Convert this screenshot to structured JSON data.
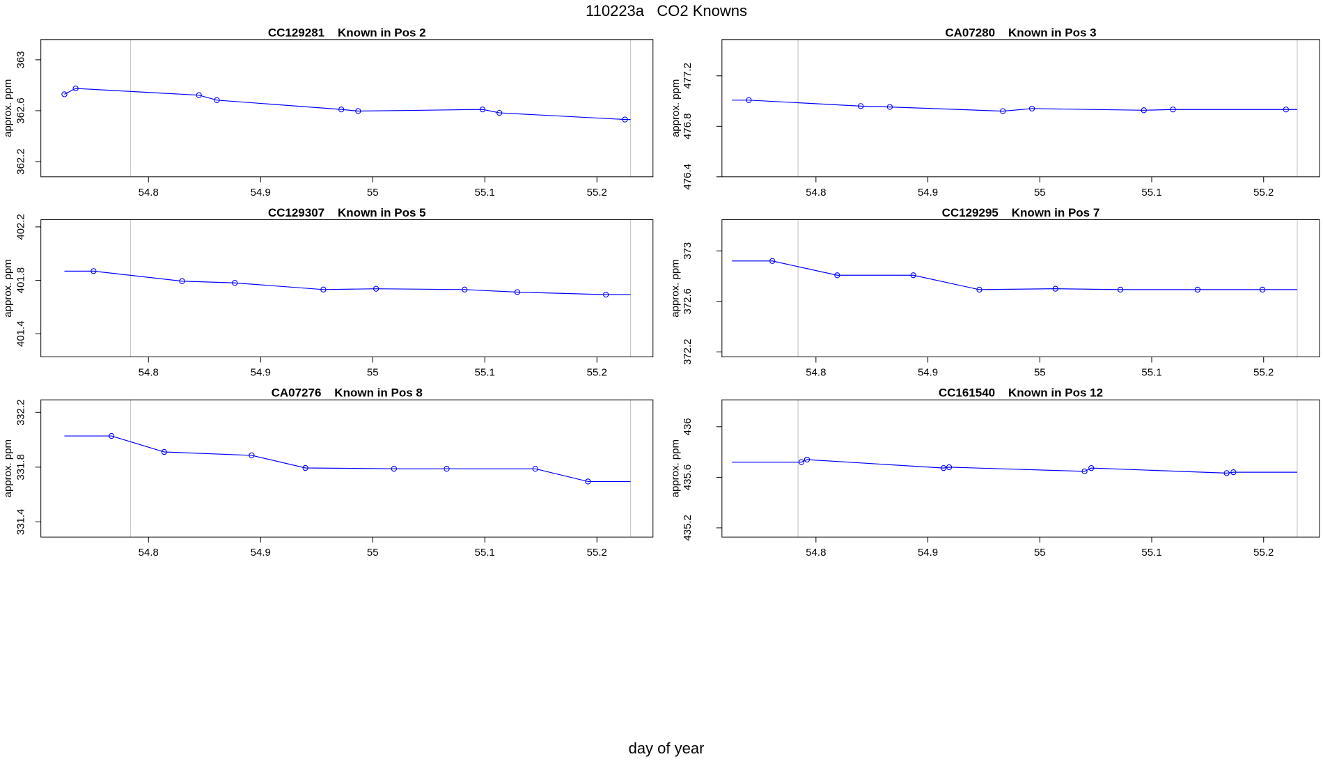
{
  "title": "110223a   CO2 Knowns",
  "xlabel": "day of year",
  "chart_data": [
    {
      "type": "line",
      "title": "CC129281    Known in Pos 2",
      "ylabel": "approx. ppm",
      "color": "#0000ff",
      "x": [
        54.725,
        54.735,
        54.845,
        54.861,
        54.972,
        54.987,
        55.098,
        55.113,
        55.225,
        55.23
      ],
      "values": [
        362.729,
        362.775,
        362.722,
        362.683,
        362.61,
        362.597,
        362.61,
        362.583,
        362.531,
        362.531
      ],
      "marker_shown": [
        true,
        true,
        true,
        true,
        true,
        true,
        true,
        true,
        true,
        false
      ],
      "xlim": [
        54.704,
        55.25
      ],
      "ylim": [
        362.081,
        363.159
      ],
      "xticks": [
        54.8,
        54.9,
        55.0,
        55.1,
        55.2
      ],
      "yticks": [
        362.2,
        362.6,
        363.0
      ],
      "vlines": [
        54.784,
        55.23
      ]
    },
    {
      "type": "line",
      "title": "CA07280    Known in Pos 3",
      "ylabel": "approx. ppm",
      "color": "#0000ff",
      "x": [
        54.725,
        54.74,
        54.84,
        54.866,
        54.967,
        54.993,
        55.093,
        55.119,
        55.22,
        55.23
      ],
      "values": [
        477.007,
        477.007,
        476.96,
        476.953,
        476.92,
        476.94,
        476.927,
        476.933,
        476.933,
        476.933
      ],
      "marker_shown": [
        false,
        true,
        true,
        true,
        true,
        true,
        true,
        true,
        true,
        false
      ],
      "xlim": [
        54.716,
        55.25
      ],
      "ylim": [
        476.4,
        477.487
      ],
      "xticks": [
        54.8,
        54.9,
        55.0,
        55.1,
        55.2
      ],
      "yticks": [
        476.4,
        476.8,
        477.2
      ],
      "vlines": [
        54.784,
        55.23
      ]
    },
    {
      "type": "line",
      "title": "CC129307    Known in Pos 5",
      "ylabel": "approx. ppm",
      "color": "#0000ff",
      "x": [
        54.725,
        54.751,
        54.83,
        54.877,
        54.956,
        55.003,
        55.082,
        55.129,
        55.208,
        55.23
      ],
      "values": [
        401.869,
        401.869,
        401.794,
        401.781,
        401.731,
        401.737,
        401.731,
        401.712,
        401.693,
        401.693
      ],
      "marker_shown": [
        false,
        true,
        true,
        true,
        true,
        true,
        true,
        true,
        true,
        false
      ],
      "xlim": [
        54.704,
        55.25
      ],
      "ylim": [
        401.227,
        402.254
      ],
      "xticks": [
        54.8,
        54.9,
        55.0,
        55.1,
        55.2
      ],
      "yticks": [
        401.4,
        401.8,
        402.2
      ],
      "vlines": [
        54.784,
        55.23
      ]
    },
    {
      "type": "line",
      "title": "CC129295    Known in Pos 7",
      "ylabel": "approx. ppm",
      "color": "#0000ff",
      "x": [
        54.725,
        54.761,
        54.819,
        54.887,
        54.946,
        55.014,
        55.072,
        55.141,
        55.199,
        55.23
      ],
      "values": [
        372.92,
        372.92,
        372.807,
        372.807,
        372.693,
        372.7,
        372.693,
        372.693,
        372.693,
        372.693
      ],
      "marker_shown": [
        false,
        true,
        true,
        true,
        true,
        true,
        true,
        true,
        true,
        false
      ],
      "xlim": [
        54.716,
        55.25
      ],
      "ylim": [
        372.16,
        373.247
      ],
      "xticks": [
        54.8,
        54.9,
        55.0,
        55.1,
        55.2
      ],
      "yticks": [
        372.2,
        372.6,
        373.0
      ],
      "vlines": [
        54.784,
        55.23
      ]
    },
    {
      "type": "line",
      "title": "CA07276    Known in Pos 8",
      "ylabel": "approx. ppm",
      "color": "#0000ff",
      "x": [
        54.725,
        54.767,
        54.814,
        54.892,
        54.94,
        55.019,
        55.066,
        55.145,
        55.192,
        55.23
      ],
      "values": [
        332.028,
        332.028,
        331.911,
        331.886,
        331.794,
        331.788,
        331.788,
        331.788,
        331.695,
        331.695
      ],
      "marker_shown": [
        false,
        true,
        true,
        true,
        true,
        true,
        true,
        true,
        true,
        false
      ],
      "xlim": [
        54.704,
        55.25
      ],
      "ylim": [
        331.289,
        332.292
      ],
      "xticks": [
        54.8,
        54.9,
        55.0,
        55.1,
        55.2
      ],
      "yticks": [
        331.4,
        331.8,
        332.2
      ],
      "vlines": [
        54.784,
        55.23
      ]
    },
    {
      "type": "line",
      "title": "CC161540    Known in Pos 12",
      "ylabel": "approx. ppm",
      "color": "#0000ff",
      "x": [
        54.725,
        54.787,
        54.792,
        54.914,
        54.919,
        55.04,
        55.046,
        55.167,
        55.173,
        55.23
      ],
      "values": [
        435.72,
        435.72,
        435.74,
        435.673,
        435.68,
        435.647,
        435.673,
        435.633,
        435.64,
        435.64
      ],
      "marker_shown": [
        false,
        true,
        true,
        true,
        true,
        true,
        true,
        true,
        true,
        false
      ],
      "xlim": [
        54.716,
        55.25
      ],
      "ylim": [
        435.127,
        436.213
      ],
      "xticks": [
        54.8,
        54.9,
        55.0,
        55.1,
        55.2
      ],
      "yticks": [
        435.2,
        435.6,
        436.0
      ],
      "vlines": [
        54.784,
        55.23
      ]
    }
  ]
}
